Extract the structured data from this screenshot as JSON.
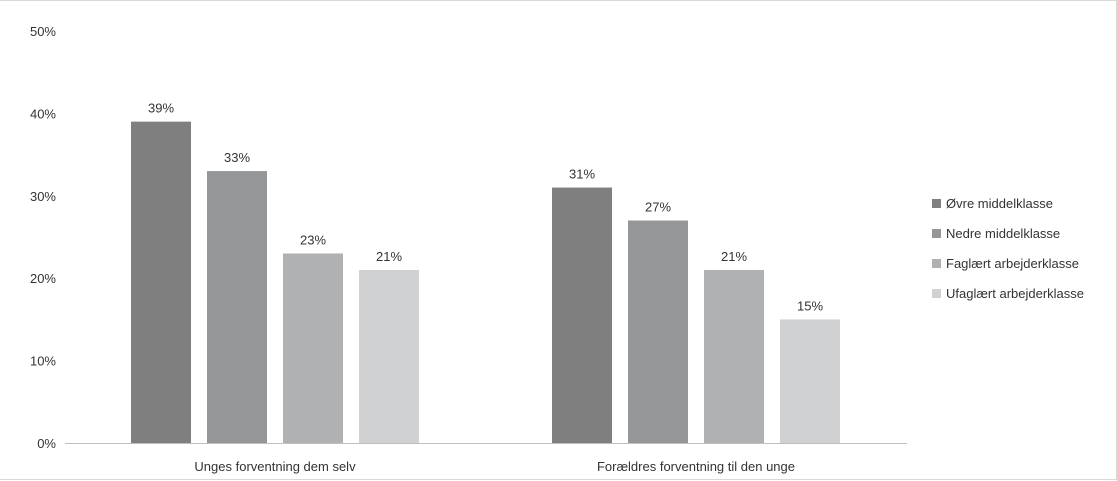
{
  "chart_data": {
    "type": "bar",
    "categories": [
      "Unges forventning dem selv",
      "Forældres forventning til den unge"
    ],
    "series": [
      {
        "name": "Øvre middelklasse",
        "values": [
          39,
          31
        ],
        "color": "#7f7f80"
      },
      {
        "name": "Nedre middelklasse",
        "values": [
          33,
          27
        ],
        "color": "#959697"
      },
      {
        "name": "Faglært arbejderklasse",
        "values": [
          23,
          21
        ],
        "color": "#b0b1b2"
      },
      {
        "name": "Ufaglært arbejderklasse",
        "values": [
          21,
          15
        ],
        "color": "#d0d1d2"
      }
    ],
    "value_labels": [
      [
        "39%",
        "31%"
      ],
      [
        "33%",
        "27%"
      ],
      [
        "23%",
        "21%"
      ],
      [
        "21%",
        "15%"
      ]
    ],
    "y_ticks": [
      0,
      10,
      20,
      30,
      40,
      50
    ],
    "y_tick_labels": [
      "0%",
      "10%",
      "20%",
      "30%",
      "40%",
      "50%"
    ],
    "ylim": [
      0,
      50
    ],
    "grid": false,
    "legend_position": "right",
    "title": "",
    "xlabel": "",
    "ylabel": ""
  }
}
